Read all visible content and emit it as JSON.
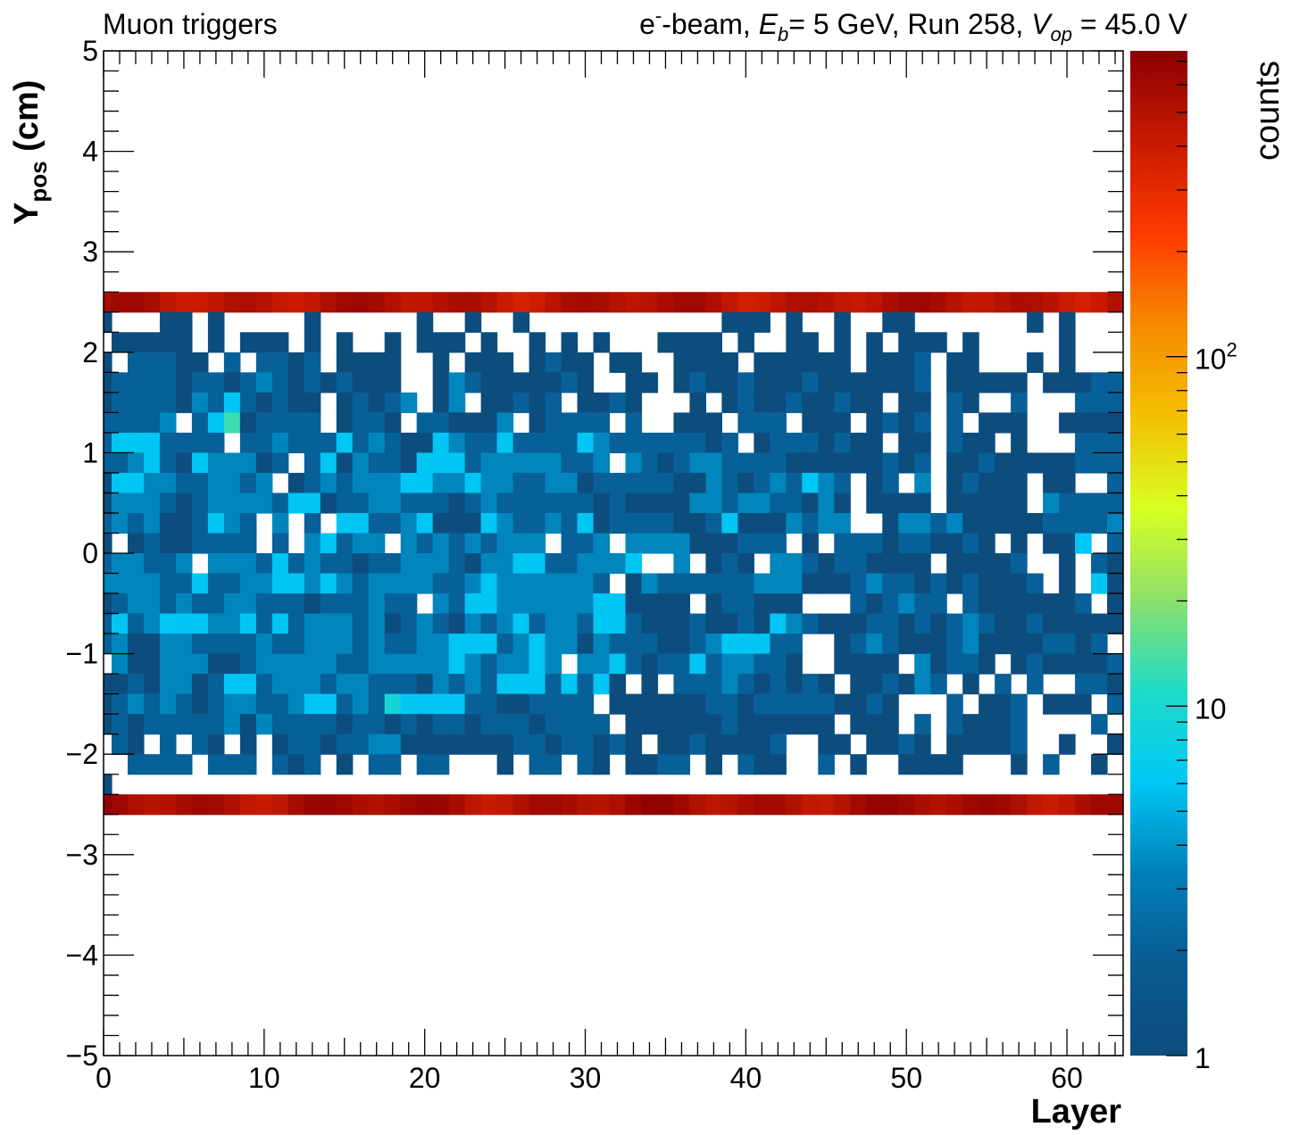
{
  "chart_data": {
    "type": "heatmap",
    "header_left": "Muon triggers",
    "header_right": {
      "beam_particle": "e",
      "beam_charge": "-",
      "beam_suffix": "-beam, ",
      "energy_symbol": "E",
      "energy_sub": "b",
      "energy_value": "= 5 GeV, Run 258, ",
      "voltage_symbol": "V",
      "voltage_sub": "op",
      "voltage_value": " = 45.0 V"
    },
    "xlabel": "Layer",
    "ylabel": {
      "main": "Y",
      "sub": "pos",
      "unit": " (cm)"
    },
    "zlabel": "counts",
    "xlim": [
      0,
      63.5
    ],
    "ylim": [
      -5,
      5
    ],
    "x_ticks": [
      {
        "value": 0,
        "label": "0"
      },
      {
        "value": 10,
        "label": "10"
      },
      {
        "value": 20,
        "label": "20"
      },
      {
        "value": 30,
        "label": "30"
      },
      {
        "value": 40,
        "label": "40"
      },
      {
        "value": 50,
        "label": "50"
      },
      {
        "value": 60,
        "label": "60"
      }
    ],
    "y_ticks": [
      {
        "value": -5,
        "label": "−5"
      },
      {
        "value": -4,
        "label": "−4"
      },
      {
        "value": -3,
        "label": "−3"
      },
      {
        "value": -2,
        "label": "−2"
      },
      {
        "value": -1,
        "label": "−1"
      },
      {
        "value": 0,
        "label": "0"
      },
      {
        "value": 1,
        "label": "1"
      },
      {
        "value": 2,
        "label": "2"
      },
      {
        "value": 3,
        "label": "3"
      },
      {
        "value": 4,
        "label": "4"
      },
      {
        "value": 5,
        "label": "5"
      }
    ],
    "z_scale": "log",
    "zlim": [
      1,
      750
    ],
    "z_ticks": [
      {
        "value": 1,
        "label": "1"
      },
      {
        "value": 10,
        "label": "10"
      },
      {
        "value": 100,
        "label": "10",
        "sup": "2"
      }
    ],
    "colormap": [
      "#0d4d7e",
      "#0a5a92",
      "#0080b8",
      "#00c8f5",
      "#1fdcc6",
      "#8fe06a",
      "#d8ff20",
      "#f3c000",
      "#f68a00",
      "#ff3a00",
      "#c81a00",
      "#8b0000"
    ],
    "bins": {
      "x_first": 0,
      "x_last": 63,
      "y_row_height": 0.2
    },
    "edge_rows": [
      {
        "y": 2.5,
        "counts": 500
      },
      {
        "y": -2.5,
        "counts": 560
      }
    ],
    "interior_grid": {
      "y_values": [
        2.3,
        2.1,
        1.9,
        1.7,
        1.5,
        1.3,
        1.1,
        0.9,
        0.7,
        0.5,
        0.3,
        0.1,
        -0.1,
        -0.3,
        -0.5,
        -0.7,
        -0.9,
        -1.1,
        -1.3,
        -1.5,
        -1.7,
        -1.9,
        -2.1,
        -2.3
      ],
      "note_levels": "0=empty, 1=1 count, 2=2 counts, 3=3-4 counts, 4=5-7 counts, 5=8-10 counts, 6=11-15 counts",
      "rows": [
        "1000110100000100000010010010000000000001110100100110000000101000",
        "0111110101110101001011101001010100011110100110101011101000001000",
        "1022211020221201111001011101211011001111011111101112011000101000",
        "1222212212321212111001321111121001101211211121111112011111011122",
        "1222213242121101212301301121201121000101211211211011021002000222",
        "2222302461222201221022111301222202001110222011101212020111001111",
        "2444222202232224232114322422224322222212012221211011021101000222",
        "2234214333120241322144423333322303212332222111111212011211111222",
        "1443322332301232333443343322331222221132123243201203012111011002",
        "1333212333324412233222123222222121111332332213101111011111032222",
        "2323112432030204422341114322324122221124111323300133231111122223",
        "1012112222020342330323232333022303333111222010222122112101011402",
        "2332230333242322122333213344223334003012103321221111011112001021",
        "3333224223344343233332234333333201322222233311123221212111201041",
        "1233232233222122232203244333333441111012211100021232202111111201",
        "2423444334242333231232132342332442111211214321112212123211211111",
        "2311332222322333232233444234331322211234442200123211123111122120",
        "0311333112333332233333432334303342122423322100111103122101211112",
        "1121331244233323322213232444242410102223212121011213201020200221",
        "1232321233223442325444422112222011111122122222112100020112011102",
        "1212222231322221221212212221222201111112111111011102021112000020",
        "0210202101012212233111111122122121011211112001101121011112001001",
        "0022220222021201022022000102202101122010211002010011110001020010",
        "1000000000000000000000000000000000000000000000000000000000000000"
      ]
    }
  }
}
